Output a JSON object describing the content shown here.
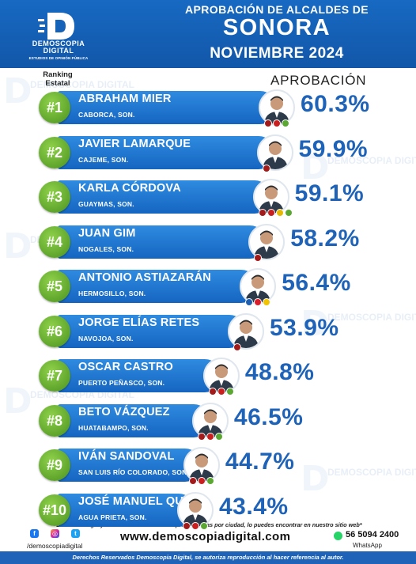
{
  "brand": {
    "name": "DEMOSCOPIA\nDIGITAL",
    "tagline": "ESTUDIOS DE OPINIÓN PÚBLICA",
    "logo_icon": "d-logo-icon",
    "accent": "#1565c0",
    "rank_green": "#5fa52c"
  },
  "header": {
    "title_small": "APROBACIÓN DE ALCALDES DE",
    "title_big": "SONORA",
    "date": "NOVIEMBRE 2024"
  },
  "columns": {
    "ranking": "Ranking\nEstatal",
    "approval": "APROBACIÓN"
  },
  "watermark": "DEMOSCOPIA DIGITAL",
  "chart_data": {
    "type": "bar",
    "title": "APROBACIÓN DE ALCALDES DE SONORA",
    "subtitle": "NOVIEMBRE 2024",
    "ylabel": "APROBACIÓN",
    "categories": [
      "ABRAHAM MIER",
      "JAVIER LAMARQUE",
      "KARLA CÓRDOVA",
      "JUAN GIM",
      "ANTONIO ASTIAZARÁN",
      "JORGE ELÍAS RETES",
      "OSCAR CASTRO",
      "BETO VÁZQUEZ",
      "IVÁN SANDOVAL",
      "JOSÉ MANUEL QUIJADA"
    ],
    "values": [
      60.3,
      59.9,
      59.1,
      58.2,
      56.4,
      53.9,
      48.8,
      46.5,
      44.7,
      43.4
    ],
    "rows": [
      {
        "rank": "#1",
        "name": "ABRAHAM MIER",
        "city": "CABORCA, SON.",
        "value": 60.3,
        "label": "60.3%",
        "parties": [
          "#a31a1a",
          "#c9201f",
          "#5aa832"
        ]
      },
      {
        "rank": "#2",
        "name": "JAVIER LAMARQUE",
        "city": "CAJEME, SON.",
        "value": 59.9,
        "label": "59.9%",
        "parties": [
          "#a31a1a"
        ]
      },
      {
        "rank": "#3",
        "name": "KARLA CÓRDOVA",
        "city": "GUAYMAS, SON.",
        "value": 59.1,
        "label": "59.1%",
        "parties": [
          "#a31a1a",
          "#c9201f",
          "#e6b800",
          "#5aa832"
        ]
      },
      {
        "rank": "#4",
        "name": "JUAN GIM",
        "city": "NOGALES, SON.",
        "value": 58.2,
        "label": "58.2%",
        "parties": [
          "#a31a1a"
        ]
      },
      {
        "rank": "#5",
        "name": "ANTONIO ASTIAZARÁN",
        "city": "HERMOSILLO, SON.",
        "value": 56.4,
        "label": "56.4%",
        "parties": [
          "#1f5fb0",
          "#d81e2a",
          "#f2c200"
        ]
      },
      {
        "rank": "#6",
        "name": "JORGE ELÍAS RETES",
        "city": "NAVOJOA, SON.",
        "value": 53.9,
        "label": "53.9%",
        "parties": [
          "#a31a1a"
        ]
      },
      {
        "rank": "#7",
        "name": "OSCAR CASTRO",
        "city": "PUERTO PEÑASCO, SON.",
        "value": 48.8,
        "label": "48.8%",
        "parties": [
          "#a31a1a",
          "#c9201f",
          "#5aa832"
        ]
      },
      {
        "rank": "#8",
        "name": "BETO VÁZQUEZ",
        "city": "HUATABAMPO, SON.",
        "value": 46.5,
        "label": "46.5%",
        "parties": [
          "#a31a1a",
          "#c9201f",
          "#5aa832"
        ]
      },
      {
        "rank": "#9",
        "name": "IVÁN SANDOVAL",
        "city": "SAN LUIS RÍO COLORADO, SON.",
        "value": 44.7,
        "label": "44.7%",
        "parties": [
          "#a31a1a",
          "#c9201f",
          "#5aa832"
        ]
      },
      {
        "rank": "#10",
        "name": "JOSÉ MANUEL QUIJADA",
        "city": "AGUA PRIETA, SON.",
        "value": 43.4,
        "label": "43.4%",
        "parties": [
          "#a31a1a",
          "#c9201f",
          "#5aa832"
        ]
      }
    ]
  },
  "footer": {
    "note": "*La metodología y el número de muestras representativas por ciudad, lo puedes encontrar en nuestro sitio web*",
    "handle": "/demoscopiadigital",
    "website": "www.demoscopiadigital.com",
    "phone": "56 5094 2400",
    "whatsapp": "WhatsApp",
    "rights": "Derechos Reservados Demoscopia Digital, se autoriza reproducción al hacer referencia al autor.",
    "social_icons": [
      "facebook-icon",
      "instagram-icon",
      "twitter-icon"
    ]
  }
}
